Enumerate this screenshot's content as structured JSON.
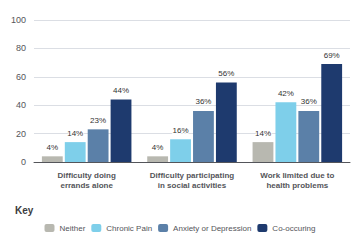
{
  "chart_data": {
    "type": "bar",
    "categories": [
      "Difficulty doing\nerrands alone",
      "Difficulty participating\nin social activities",
      "Work limited due to\nhealth problems"
    ],
    "series": [
      {
        "name": "Neither",
        "color": "#b8b8b0",
        "values": [
          4,
          4,
          14
        ],
        "value_labels": [
          "4%",
          "4%",
          "14%"
        ]
      },
      {
        "name": "Chronic Pain",
        "color": "#7ecfea",
        "values": [
          14,
          16,
          42
        ],
        "value_labels": [
          "14%",
          "16%",
          "42%"
        ]
      },
      {
        "name": "Anxiety or Depression",
        "color": "#5b80a8",
        "values": [
          23,
          36,
          36
        ],
        "value_labels": [
          "23%",
          "36%",
          "36%"
        ]
      },
      {
        "name": "Co-occuring",
        "color": "#1e3a6e",
        "values": [
          44,
          56,
          69
        ],
        "value_labels": [
          "44%",
          "56%",
          "69%"
        ]
      }
    ],
    "ylim": [
      0,
      100
    ],
    "yticks": [
      0,
      20,
      40,
      60,
      80,
      100
    ],
    "grid": true,
    "legend": "bottom",
    "legend_title": "Key",
    "data_labels": true
  }
}
